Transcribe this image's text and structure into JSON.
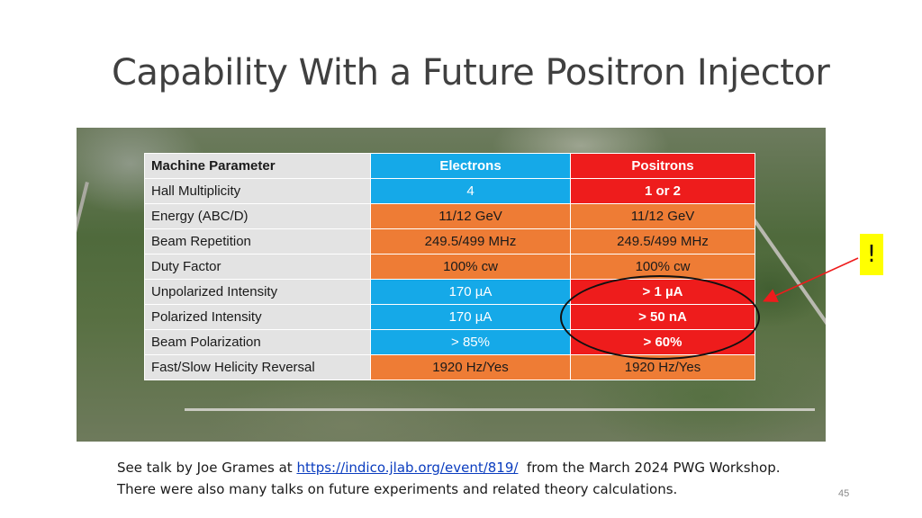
{
  "slide": {
    "title": "Capability With a Future Positron Injector",
    "exclamation": "!",
    "page_number": "45"
  },
  "table": {
    "headers": [
      "Machine Parameter",
      "Electrons",
      "Positrons"
    ],
    "rows": [
      [
        "Hall Multiplicity",
        "4",
        "1 or 2"
      ],
      [
        "Energy (ABC/D)",
        "11/12 GeV",
        "11/12 GeV"
      ],
      [
        "Beam Repetition",
        "249.5/499 MHz",
        "249.5/499 MHz"
      ],
      [
        "Duty Factor",
        "100% cw",
        "100% cw"
      ],
      [
        "Unpolarized Intensity",
        "170 µA",
        "> 1 µA"
      ],
      [
        "Polarized Intensity",
        "170 µA",
        "> 50 nA"
      ],
      [
        "Beam Polarization",
        "> 85%",
        "> 60%"
      ],
      [
        "Fast/Slow Helicity Reversal",
        "1920 Hz/Yes",
        "1920 Hz/Yes"
      ]
    ]
  },
  "footer": {
    "line1_before": "See talk by Joe Grames at ",
    "link": "https://indico.jlab.org/event/819/",
    "line1_after": "  from the March 2024 PWG Workshop.",
    "line2": "There were also many talks on future experiments and related theory calculations."
  },
  "colors": {
    "electrons": "#15a9e8",
    "positrons": "#ee1c1c",
    "shared": "#ee7c35",
    "parameter": "#e3e3e3",
    "exclamation_bg": "#ffff00",
    "arrow": "#ee1c1c"
  }
}
